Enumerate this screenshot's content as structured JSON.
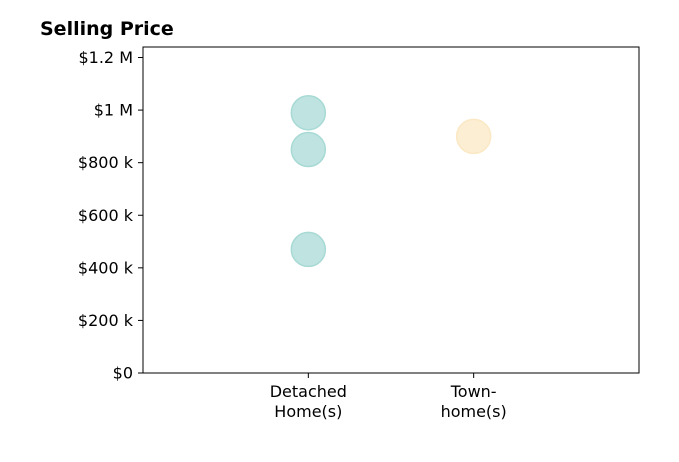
{
  "chart_data": {
    "type": "scatter",
    "title": "Selling Price",
    "categories": [
      [
        "Detached",
        "Home(s)"
      ],
      [
        "Town-",
        "home(s)"
      ]
    ],
    "y_ticks": [
      {
        "value": 0,
        "label": "$0"
      },
      {
        "value": 200000,
        "label": "$200 k"
      },
      {
        "value": 400000,
        "label": "$400 k"
      },
      {
        "value": 600000,
        "label": "$600 k"
      },
      {
        "value": 800000,
        "label": "$800 k"
      },
      {
        "value": 1000000,
        "label": "$1 M"
      },
      {
        "value": 1200000,
        "label": "$1.2 M"
      }
    ],
    "ylim": [
      0,
      1240000
    ],
    "xlim": [
      -1,
      2
    ],
    "grid": false,
    "series": [
      {
        "category_index": 0,
        "color": "#a8dad5",
        "points": [
          990000,
          850000,
          470000
        ]
      },
      {
        "category_index": 1,
        "color": "#fbe8c4",
        "points": [
          900000
        ]
      }
    ]
  }
}
